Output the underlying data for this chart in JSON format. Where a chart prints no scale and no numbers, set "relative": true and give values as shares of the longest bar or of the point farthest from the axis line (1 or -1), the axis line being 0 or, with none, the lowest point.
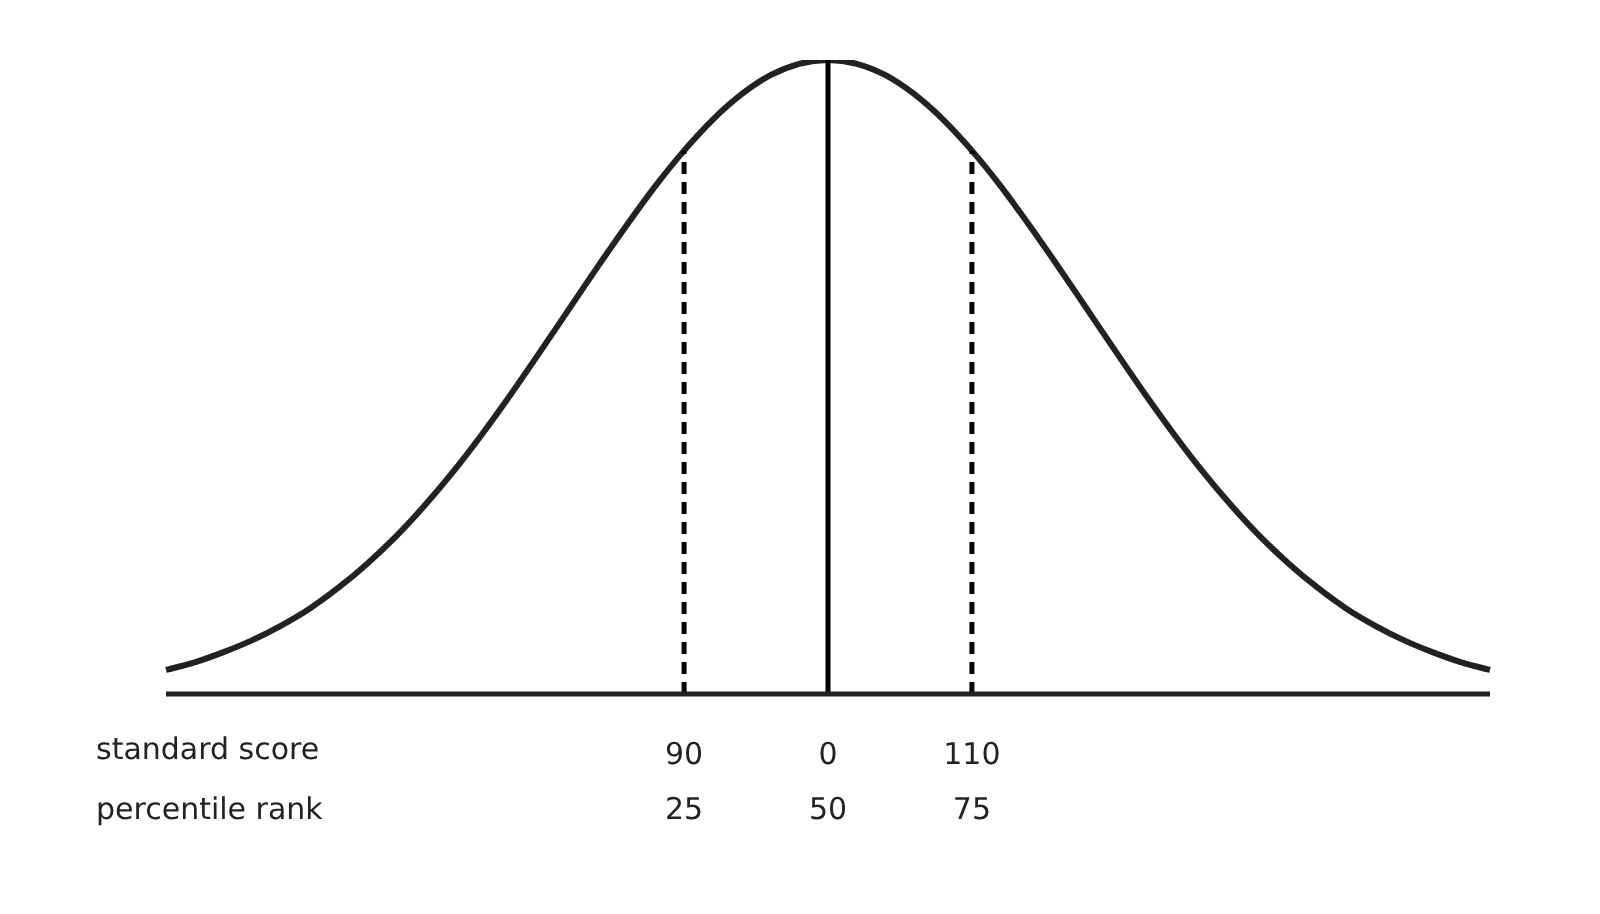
{
  "chart_data": {
    "type": "line",
    "relative": true,
    "color": "#222222",
    "categories": [
      null,
      null,
      null,
      null,
      null,
      null,
      null,
      null,
      null,
      null,
      null,
      null,
      null,
      null,
      null,
      null,
      null,
      null,
      "90",
      null,
      null,
      null,
      null,
      "0",
      null,
      null,
      null,
      null,
      "110",
      null,
      null,
      null,
      null,
      null,
      null,
      null,
      null,
      null,
      null,
      null,
      null,
      null,
      null,
      null,
      null,
      null,
      null
    ],
    "values": [
      0.038,
      0.05,
      0.066,
      0.085,
      0.108,
      0.135,
      0.168,
      0.206,
      0.249,
      0.298,
      0.352,
      0.411,
      0.474,
      0.54,
      0.607,
      0.674,
      0.739,
      0.801,
      0.857,
      0.906,
      0.946,
      0.976,
      0.994,
      1,
      0.994,
      0.976,
      0.946,
      0.906,
      0.857,
      0.801,
      0.739,
      0.674,
      0.607,
      0.54,
      0.474,
      0.411,
      0.352,
      0.298,
      0.249,
      0.206,
      0.168,
      0.135,
      0.108,
      0.085,
      0.066,
      0.05,
      0.038
    ],
    "xlabel": "standard score",
    "annotations": [
      "percentile rank",
      "25",
      "50",
      "75"
    ],
    "ref_lines": [
      {
        "axis": "x",
        "value": "0",
        "color": "#000000",
        "line_style": "solid"
      },
      {
        "axis": "x",
        "value": "90",
        "color": "#000000",
        "line_style": "dashed"
      },
      {
        "axis": "x",
        "value": "110",
        "color": "#000000",
        "line_style": "dashed"
      }
    ],
    "grid": false,
    "legend": false,
    "marker": "none",
    "line_style": "solid"
  }
}
